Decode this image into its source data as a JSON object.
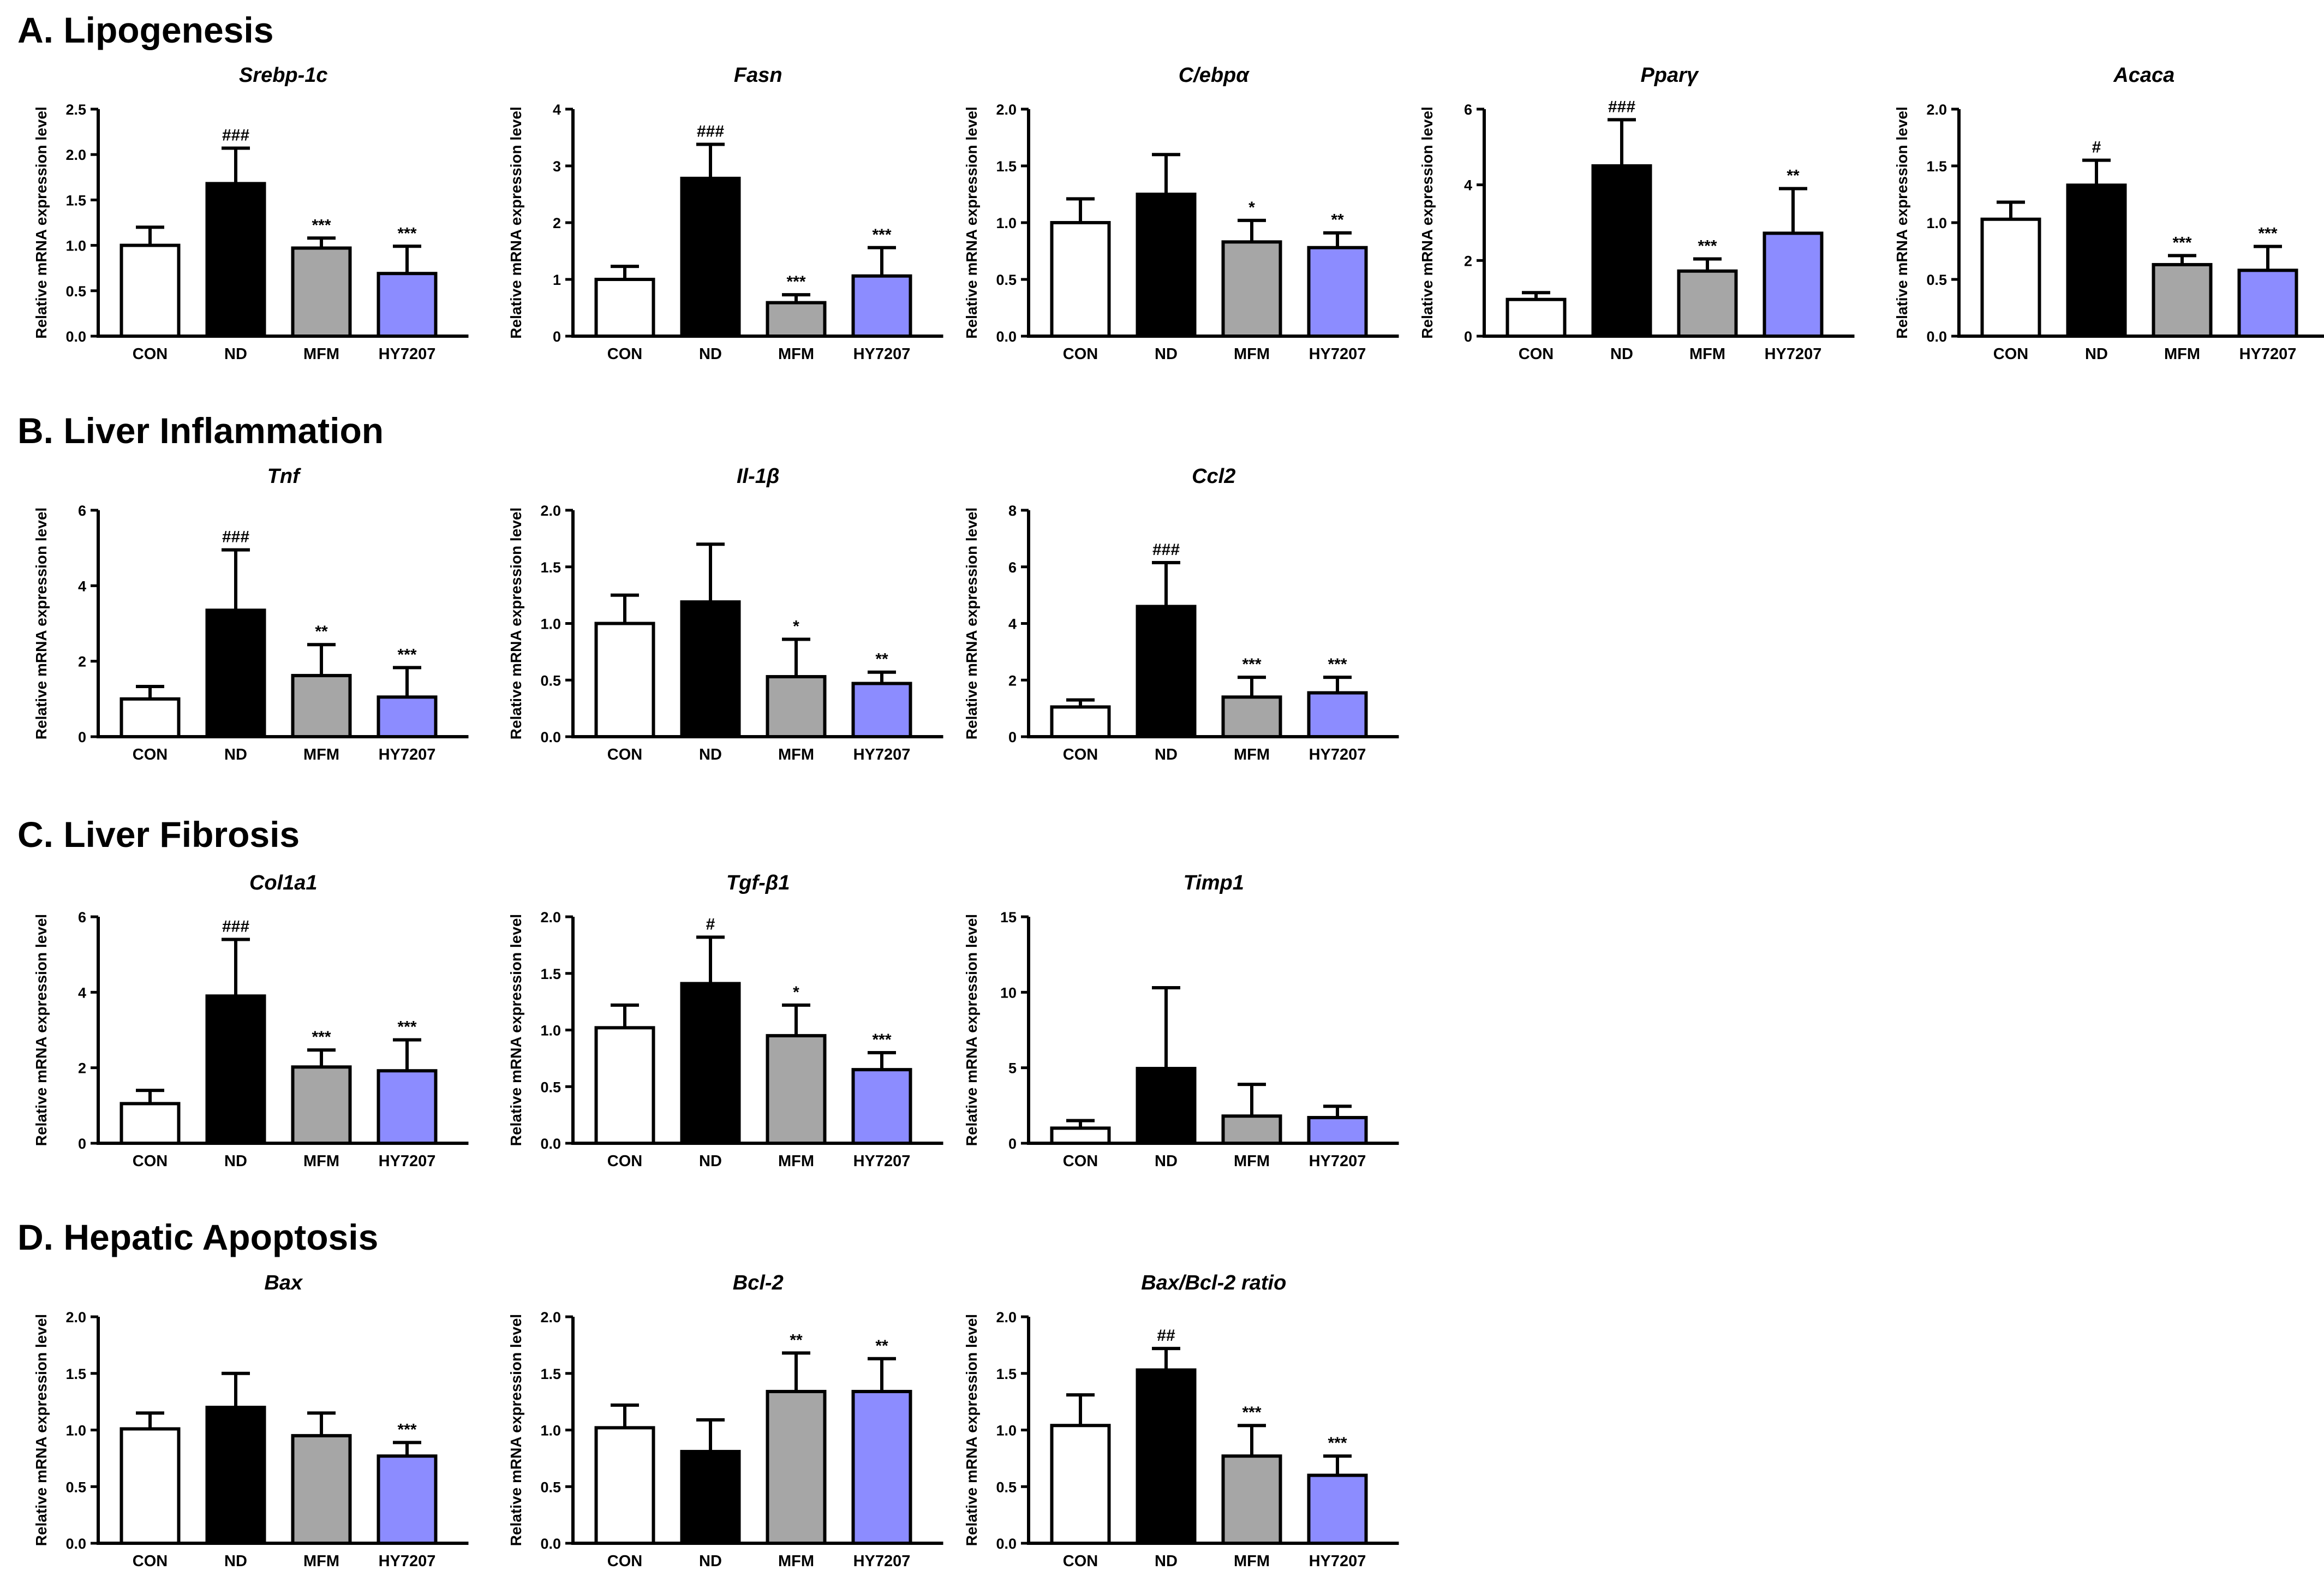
{
  "figure": {
    "sections": [
      {
        "label": "A. Lipogenesis"
      },
      {
        "label": "B. Liver Inflammation"
      },
      {
        "label": "C. Liver Fibrosis"
      },
      {
        "label": "D. Hepatic Apoptosis"
      }
    ]
  },
  "colors": {
    "CON": "#ffffff",
    "ND": "#000000",
    "MFM": "#a6a6a6",
    "HY7207": "#8c8cff",
    "stroke": "#000000"
  },
  "chart_data": [
    {
      "type": "bar",
      "section": 0,
      "title": "Srebp-1c",
      "ylabel": "Relative mRNA expression level",
      "categories": [
        "CON",
        "ND",
        "MFM",
        "HY7207"
      ],
      "ylim": [
        0,
        2.5
      ],
      "ticks": [
        "0.0",
        "0.5",
        "1.0",
        "1.5",
        "2.0",
        "2.5"
      ],
      "values": [
        1.0,
        1.68,
        0.97,
        0.69
      ],
      "errors": [
        0.2,
        0.39,
        0.11,
        0.3
      ],
      "annotations": [
        "",
        "###",
        "***",
        "***"
      ]
    },
    {
      "type": "bar",
      "section": 0,
      "title": "Fasn",
      "ylabel": "Relative mRNA expression level",
      "categories": [
        "CON",
        "ND",
        "MFM",
        "HY7207"
      ],
      "ylim": [
        0,
        4
      ],
      "ticks": [
        "0",
        "1",
        "2",
        "3",
        "4"
      ],
      "values": [
        1.0,
        2.78,
        0.59,
        1.06
      ],
      "errors": [
        0.23,
        0.6,
        0.14,
        0.5
      ],
      "annotations": [
        "",
        "###",
        "***",
        "***"
      ]
    },
    {
      "type": "bar",
      "section": 0,
      "title": "C/ebpα",
      "ylabel": "Relative mRNA expression level",
      "categories": [
        "CON",
        "ND",
        "MFM",
        "HY7207"
      ],
      "ylim": [
        0,
        2.0
      ],
      "ticks": [
        "0.0",
        "0.5",
        "1.0",
        "1.5",
        "2.0"
      ],
      "values": [
        1.0,
        1.25,
        0.83,
        0.78
      ],
      "errors": [
        0.21,
        0.35,
        0.19,
        0.13
      ],
      "annotations": [
        "",
        "",
        "*",
        "**"
      ]
    },
    {
      "type": "bar",
      "section": 0,
      "title": "Pparγ",
      "ylabel": "Relative mRNA expression level",
      "categories": [
        "CON",
        "ND",
        "MFM",
        "HY7207"
      ],
      "ylim": [
        0,
        6
      ],
      "ticks": [
        "0",
        "2",
        "4",
        "6"
      ],
      "values": [
        0.97,
        4.5,
        1.72,
        2.72
      ],
      "errors": [
        0.18,
        1.22,
        0.32,
        1.18
      ],
      "annotations": [
        "",
        "###",
        "***",
        "**"
      ]
    },
    {
      "type": "bar",
      "section": 0,
      "title": "Acaca",
      "ylabel": "Relative mRNA expression level",
      "categories": [
        "CON",
        "ND",
        "MFM",
        "HY7207"
      ],
      "ylim": [
        0,
        2.0
      ],
      "ticks": [
        "0.0",
        "0.5",
        "1.0",
        "1.5",
        "2.0"
      ],
      "values": [
        1.03,
        1.33,
        0.63,
        0.58
      ],
      "errors": [
        0.15,
        0.22,
        0.08,
        0.21
      ],
      "annotations": [
        "",
        "#",
        "***",
        "***"
      ]
    },
    {
      "type": "bar",
      "section": 1,
      "title": "Tnf",
      "ylabel": "Relative mRNA expression level",
      "categories": [
        "CON",
        "ND",
        "MFM",
        "HY7207"
      ],
      "ylim": [
        0,
        6
      ],
      "ticks": [
        "0",
        "2",
        "4",
        "6"
      ],
      "values": [
        1.0,
        3.35,
        1.62,
        1.05
      ],
      "errors": [
        0.33,
        1.6,
        0.82,
        0.78
      ],
      "annotations": [
        "",
        "###",
        "**",
        "***"
      ]
    },
    {
      "type": "bar",
      "section": 1,
      "title": "Il-1β",
      "ylabel": "Relative mRNA expression level",
      "categories": [
        "CON",
        "ND",
        "MFM",
        "HY7207"
      ],
      "ylim": [
        0,
        2.0
      ],
      "ticks": [
        "0.0",
        "0.5",
        "1.0",
        "1.5",
        "2.0"
      ],
      "values": [
        1.0,
        1.19,
        0.53,
        0.47
      ],
      "errors": [
        0.25,
        0.51,
        0.33,
        0.1
      ],
      "annotations": [
        "",
        "",
        "*",
        "**"
      ]
    },
    {
      "type": "bar",
      "section": 1,
      "title": "Ccl2",
      "ylabel": "Relative mRNA expression level",
      "categories": [
        "CON",
        "ND",
        "MFM",
        "HY7207"
      ],
      "ylim": [
        0,
        8
      ],
      "ticks": [
        "0",
        "2",
        "4",
        "6",
        "8"
      ],
      "values": [
        1.05,
        4.6,
        1.4,
        1.55
      ],
      "errors": [
        0.25,
        1.55,
        0.7,
        0.55
      ],
      "annotations": [
        "",
        "###",
        "***",
        "***"
      ]
    },
    {
      "type": "bar",
      "section": 2,
      "title": "Col1a1",
      "ylabel": "Relative mRNA expression level",
      "categories": [
        "CON",
        "ND",
        "MFM",
        "HY7207"
      ],
      "ylim": [
        0,
        6
      ],
      "ticks": [
        "0",
        "2",
        "4",
        "6"
      ],
      "values": [
        1.05,
        3.9,
        2.02,
        1.92
      ],
      "errors": [
        0.35,
        1.5,
        0.45,
        0.82
      ],
      "annotations": [
        "",
        "###",
        "***",
        "***"
      ]
    },
    {
      "type": "bar",
      "section": 2,
      "title": "Tgf-β1",
      "ylabel": "Relative mRNA expression level",
      "categories": [
        "CON",
        "ND",
        "MFM",
        "HY7207"
      ],
      "ylim": [
        0,
        2.0
      ],
      "ticks": [
        "0.0",
        "0.5",
        "1.0",
        "1.5",
        "2.0"
      ],
      "values": [
        1.02,
        1.41,
        0.95,
        0.65
      ],
      "errors": [
        0.2,
        0.41,
        0.27,
        0.15
      ],
      "annotations": [
        "",
        "#",
        "*",
        "***"
      ]
    },
    {
      "type": "bar",
      "section": 2,
      "title": "Timp1",
      "ylabel": "Relative mRNA expression level",
      "categories": [
        "CON",
        "ND",
        "MFM",
        "HY7207"
      ],
      "ylim": [
        0,
        15
      ],
      "ticks": [
        "0",
        "5",
        "10",
        "15"
      ],
      "values": [
        1.0,
        4.95,
        1.8,
        1.7
      ],
      "errors": [
        0.5,
        5.35,
        2.1,
        0.75
      ],
      "annotations": [
        "",
        "",
        "",
        ""
      ]
    },
    {
      "type": "bar",
      "section": 3,
      "title": "Bax",
      "ylabel": "Relative mRNA expression level",
      "categories": [
        "CON",
        "ND",
        "MFM",
        "HY7207"
      ],
      "ylim": [
        0,
        2.0
      ],
      "ticks": [
        "0.0",
        "0.5",
        "1.0",
        "1.5",
        "2.0"
      ],
      "values": [
        1.01,
        1.2,
        0.95,
        0.77
      ],
      "errors": [
        0.14,
        0.3,
        0.2,
        0.12
      ],
      "annotations": [
        "",
        "",
        "",
        "***"
      ]
    },
    {
      "type": "bar",
      "section": 3,
      "title": "Bcl-2",
      "ylabel": "Relative mRNA expression level",
      "categories": [
        "CON",
        "ND",
        "MFM",
        "HY7207"
      ],
      "ylim": [
        0,
        2.0
      ],
      "ticks": [
        "0.0",
        "0.5",
        "1.0",
        "1.5",
        "2.0"
      ],
      "values": [
        1.02,
        0.81,
        1.34,
        1.34
      ],
      "errors": [
        0.2,
        0.28,
        0.34,
        0.29
      ],
      "annotations": [
        "",
        "",
        "**",
        "**"
      ]
    },
    {
      "type": "bar",
      "section": 3,
      "title": "Bax/Bcl-2 ratio",
      "ylabel": "Relative mRNA expression level",
      "categories": [
        "CON",
        "ND",
        "MFM",
        "HY7207"
      ],
      "ylim": [
        0,
        2.0
      ],
      "ticks": [
        "0.0",
        "0.5",
        "1.0",
        "1.5",
        "2.0"
      ],
      "values": [
        1.04,
        1.53,
        0.77,
        0.6
      ],
      "errors": [
        0.27,
        0.19,
        0.27,
        0.17
      ],
      "annotations": [
        "",
        "##",
        "***",
        "***"
      ]
    }
  ]
}
